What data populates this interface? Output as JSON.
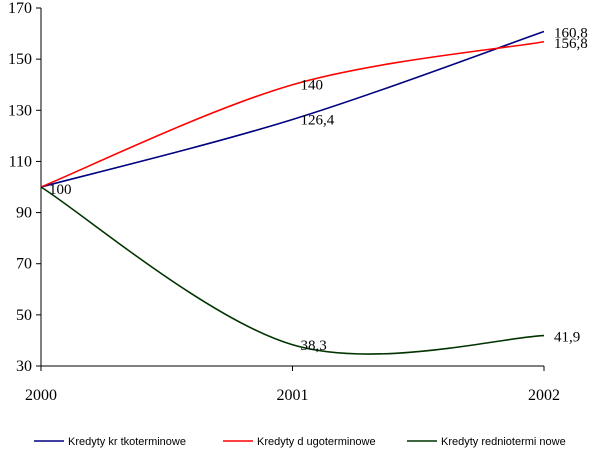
{
  "chart_data": {
    "type": "line",
    "x": [
      "2000",
      "2001",
      "2002"
    ],
    "ylim": [
      30,
      170
    ],
    "yticks": [
      "30",
      "50",
      "70",
      "90",
      "110",
      "130",
      "150",
      "170"
    ],
    "xticks": [
      "2000",
      "2001",
      "2002"
    ],
    "grid": false,
    "legend_position": "bottom",
    "series": [
      {
        "name": "Kredyty kr tkoterminowe",
        "color": "#000080",
        "values": [
          100,
          126.4,
          160.8
        ],
        "labels": [
          "",
          "126,4",
          "160,8"
        ]
      },
      {
        "name": "Kredyty d ugoterminowe",
        "color": "#ff0000",
        "values": [
          100,
          140,
          156.8
        ],
        "labels": [
          "",
          "140",
          "156,8"
        ]
      },
      {
        "name": "Kredyty   redniotermi nowe",
        "color": "#003300",
        "values": [
          100,
          38.3,
          41.9
        ],
        "labels": [
          "100",
          "38,3",
          "41,9"
        ]
      }
    ]
  }
}
